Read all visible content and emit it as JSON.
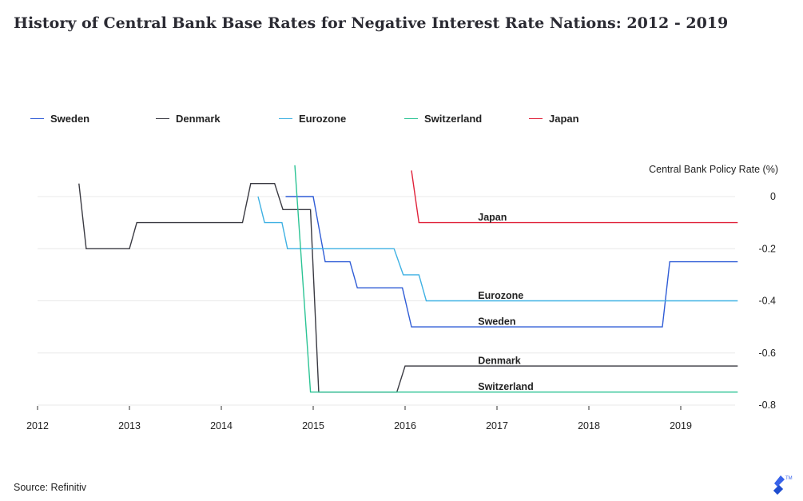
{
  "title": "History of Central Bank Base Rates for Negative Interest Rate Nations: 2012 - 2019",
  "source": "Source: Refinitiv",
  "logo_icon": "toptal-logo",
  "chart_data": {
    "type": "line",
    "title": "History of Central Bank Base Rates for Negative Interest Rate Nations: 2012 - 2019",
    "xlabel": "",
    "ylabel": "Central Bank Policy Rate (%)",
    "xlim": [
      2012,
      2019.62
    ],
    "ylim": [
      -0.8,
      0.12
    ],
    "x_ticks": [
      "2012",
      "2013",
      "2014",
      "2015",
      "2016",
      "2017",
      "2018",
      "2019"
    ],
    "y_ticks": [
      {
        "value": 0,
        "label": "0"
      },
      {
        "value": -0.2,
        "label": "-0.2"
      },
      {
        "value": -0.4,
        "label": "-0.4"
      },
      {
        "value": -0.6,
        "label": "-0.6"
      },
      {
        "value": -0.8,
        "label": "-0.8"
      }
    ],
    "grid": "horizontal",
    "legend_position": "top",
    "y_axis_side": "right",
    "series": [
      {
        "name": "Sweden",
        "color": "#2f5cd6",
        "x": [
          2014.7,
          2015.0,
          2015.13,
          2015.4,
          2015.48,
          2015.97,
          2016.07,
          2018.8,
          2018.88,
          2019.62
        ],
        "y": [
          0,
          0,
          -0.25,
          -0.25,
          -0.35,
          -0.35,
          -0.5,
          -0.5,
          -0.25,
          -0.25
        ]
      },
      {
        "name": "Denmark",
        "color": "#3a3a42",
        "x": [
          2012.45,
          2012.53,
          2013.0,
          2013.08,
          2014.23,
          2014.32,
          2014.58,
          2014.67,
          2014.97,
          2015.06,
          2015.91,
          2016.0,
          2019.62
        ],
        "y": [
          0.05,
          -0.2,
          -0.2,
          -0.1,
          -0.1,
          0.05,
          0.05,
          -0.05,
          -0.05,
          -0.75,
          -0.75,
          -0.65,
          -0.65
        ],
        "label": "Denmark"
      },
      {
        "name": "Eurozone",
        "color": "#3fb1e3",
        "x": [
          2014.4,
          2014.47,
          2014.66,
          2014.72,
          2015.88,
          2015.98,
          2016.15,
          2016.23,
          2019.62
        ],
        "y": [
          0,
          -0.1,
          -0.1,
          -0.2,
          -0.2,
          -0.3,
          -0.3,
          -0.4,
          -0.4
        ]
      },
      {
        "name": "Switzerland",
        "color": "#2cc495",
        "x": [
          2014.8,
          2014.97,
          2019.62
        ],
        "y": [
          0.12,
          -0.75,
          -0.75
        ]
      },
      {
        "name": "Japan",
        "color": "#e0223a",
        "x": [
          2016.07,
          2016.15,
          2019.62
        ],
        "y": [
          0.1,
          -0.1,
          -0.1
        ]
      }
    ],
    "line_labels": [
      {
        "text": "Japan",
        "series": "Japan",
        "x": 2016.75,
        "y": -0.08
      },
      {
        "text": "Eurozone",
        "series": "Eurozone",
        "x": 2016.75,
        "y": -0.38
      },
      {
        "text": "Sweden",
        "series": "Sweden",
        "x": 2016.75,
        "y": -0.48
      },
      {
        "text": "Denmark",
        "series": "Denmark",
        "x": 2016.75,
        "y": -0.63
      },
      {
        "text": "Switzerland",
        "series": "Switzerland",
        "x": 2016.75,
        "y": -0.73
      }
    ]
  }
}
